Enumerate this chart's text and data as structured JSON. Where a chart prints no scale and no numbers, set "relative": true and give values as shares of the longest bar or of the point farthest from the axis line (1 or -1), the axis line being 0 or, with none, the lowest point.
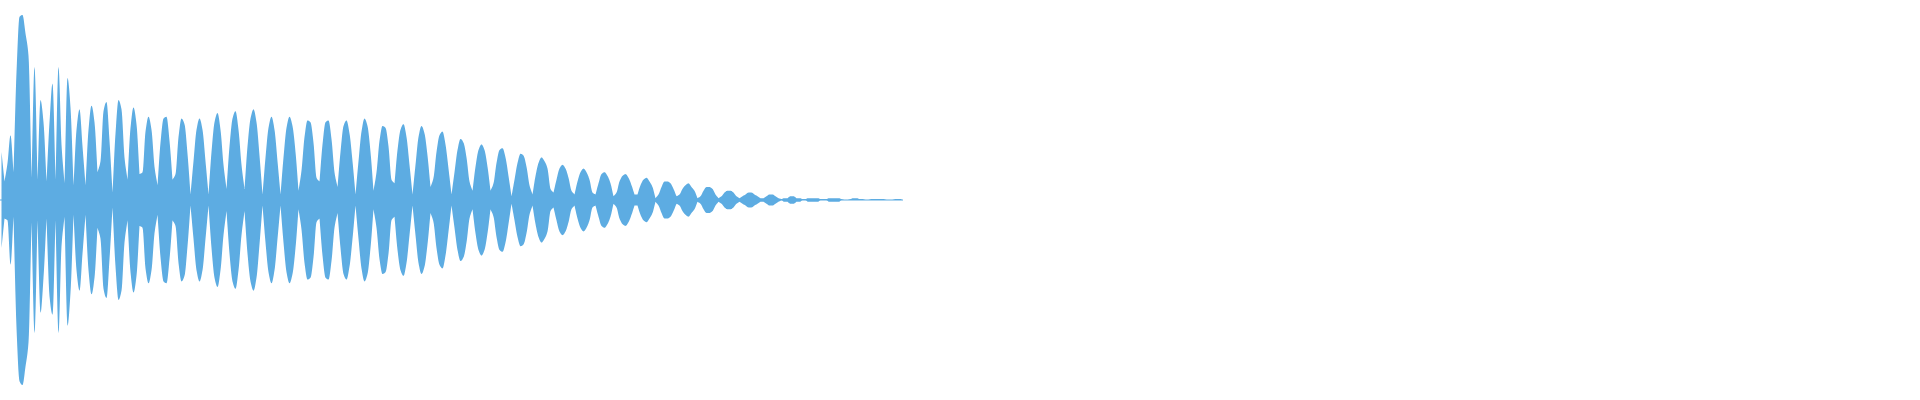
{
  "chart_data": {
    "type": "area",
    "relative": true,
    "categories": [
      null,
      null,
      null,
      null,
      null,
      null,
      null,
      null,
      null,
      null,
      null,
      null,
      null,
      null,
      null,
      null,
      null,
      null,
      null,
      null,
      null,
      null,
      null,
      null,
      null,
      null,
      null,
      null,
      null,
      null,
      null,
      null,
      null,
      null,
      null,
      null,
      null,
      null,
      null,
      null,
      null,
      null,
      null,
      null,
      null,
      null,
      null,
      null,
      null,
      null,
      null,
      null,
      null,
      null,
      null,
      null,
      null,
      null,
      null,
      null,
      null,
      null,
      null,
      null,
      null,
      null,
      null,
      null,
      null,
      null,
      null,
      null,
      null,
      null,
      null,
      null,
      null,
      null,
      null,
      null,
      null,
      null,
      null,
      null,
      null,
      null,
      null,
      null,
      null,
      null,
      null,
      null,
      null,
      null,
      null,
      null,
      null,
      null,
      null,
      null,
      null,
      null,
      null,
      null,
      null,
      null,
      null,
      null,
      null,
      null,
      null,
      null,
      null,
      null,
      null,
      null,
      null,
      null,
      null,
      null,
      null,
      null,
      null,
      null,
      null,
      null,
      null,
      null,
      null,
      null,
      null,
      null,
      null,
      null,
      null,
      null,
      null,
      null,
      null,
      null,
      null,
      null,
      null,
      null,
      null,
      null,
      null,
      null,
      null,
      null,
      null,
      null,
      null,
      null,
      null,
      null,
      null,
      null,
      null,
      null,
      null,
      null,
      null,
      null,
      null,
      null,
      null,
      null,
      null,
      null,
      null,
      null,
      null,
      null,
      null,
      null,
      null,
      null,
      null,
      null,
      null,
      null,
      null,
      null,
      null,
      null,
      null,
      null,
      null,
      null,
      null,
      null,
      null,
      null,
      null,
      null,
      null,
      null,
      null,
      null,
      null,
      null,
      null,
      null,
      null,
      null,
      null,
      null,
      null,
      null,
      null,
      null,
      null,
      null,
      null,
      null,
      null,
      null,
      null,
      null,
      null,
      null,
      null,
      null,
      null,
      null,
      null,
      null,
      null,
      null,
      null,
      null,
      null,
      null,
      null,
      null,
      null,
      null,
      null,
      null,
      null,
      null,
      null,
      null,
      null,
      null,
      null,
      null,
      null,
      null,
      null,
      null,
      null,
      null,
      null,
      null,
      null,
      null,
      null,
      null,
      null,
      null,
      null,
      null,
      null,
      null,
      null,
      null,
      null,
      null,
      null,
      null,
      null,
      null,
      null,
      null,
      null,
      null,
      null,
      null,
      null,
      null,
      null,
      null,
      null,
      null,
      null,
      null,
      null,
      null,
      null,
      null,
      null,
      null,
      null,
      null,
      null,
      null,
      null,
      null,
      null
    ],
    "series": [
      {
        "color": "#5dace2",
        "values": [
          0.26,
          0.1,
          0.2,
          0.35,
          0.15,
          0.69,
          0.99,
          1.0,
          0.9,
          0.78,
          0.12,
          0.72,
          0.11,
          0.54,
          0.42,
          0.1,
          0.42,
          0.63,
          0.11,
          0.72,
          0.3,
          0.09,
          0.66,
          0.5,
          0.08,
          0.38,
          0.49,
          0.29,
          0.08,
          0.38,
          0.51,
          0.42,
          0.15,
          0.21,
          0.48,
          0.53,
          0.32,
          0.04,
          0.36,
          0.54,
          0.49,
          0.23,
          0.11,
          0.39,
          0.5,
          0.41,
          0.14,
          0.15,
          0.37,
          0.45,
          0.38,
          0.18,
          0.08,
          0.31,
          0.44,
          0.45,
          0.32,
          0.11,
          0.14,
          0.34,
          0.44,
          0.41,
          0.25,
          0.03,
          0.21,
          0.38,
          0.44,
          0.38,
          0.21,
          0.03,
          0.26,
          0.42,
          0.47,
          0.38,
          0.19,
          0.06,
          0.29,
          0.44,
          0.48,
          0.38,
          0.19,
          0.06,
          0.29,
          0.44,
          0.49,
          0.42,
          0.24,
          0.03,
          0.23,
          0.39,
          0.45,
          0.38,
          0.21,
          0.03,
          0.23,
          0.39,
          0.45,
          0.4,
          0.26,
          0.05,
          0.16,
          0.34,
          0.43,
          0.42,
          0.31,
          0.12,
          0.1,
          0.3,
          0.42,
          0.43,
          0.33,
          0.15,
          0.07,
          0.26,
          0.4,
          0.43,
          0.36,
          0.21,
          0.03,
          0.21,
          0.37,
          0.44,
          0.4,
          0.26,
          0.05,
          0.15,
          0.32,
          0.4,
          0.39,
          0.29,
          0.11,
          0.09,
          0.27,
          0.38,
          0.41,
          0.34,
          0.19,
          0.03,
          0.19,
          0.34,
          0.4,
          0.36,
          0.24,
          0.07,
          0.12,
          0.26,
          0.35,
          0.37,
          0.3,
          0.17,
          0.03,
          0.15,
          0.27,
          0.33,
          0.31,
          0.23,
          0.1,
          0.05,
          0.18,
          0.27,
          0.3,
          0.27,
          0.18,
          0.05,
          0.09,
          0.2,
          0.27,
          0.28,
          0.23,
          0.13,
          0.02,
          0.11,
          0.2,
          0.25,
          0.24,
          0.18,
          0.08,
          0.03,
          0.13,
          0.2,
          0.23,
          0.21,
          0.17,
          0.06,
          0.04,
          0.11,
          0.17,
          0.19,
          0.17,
          0.12,
          0.05,
          0.03,
          0.1,
          0.15,
          0.17,
          0.15,
          0.11,
          0.04,
          0.03,
          0.09,
          0.14,
          0.15,
          0.13,
          0.09,
          0.02,
          0.04,
          0.1,
          0.13,
          0.14,
          0.12,
          0.08,
          0.03,
          0.03,
          0.08,
          0.11,
          0.12,
          0.1,
          0.07,
          0.01,
          0.03,
          0.07,
          0.1,
          0.1,
          0.09,
          0.06,
          0.02,
          0.03,
          0.06,
          0.08,
          0.09,
          0.07,
          0.05,
          0.01,
          0.02,
          0.05,
          0.07,
          0.07,
          0.06,
          0.03,
          0.01,
          0.02,
          0.04,
          0.05,
          0.05,
          0.04,
          0.02,
          0.01,
          0.02,
          0.03,
          0.04,
          0.04,
          0.03,
          0.02,
          0.01,
          0.01,
          0.02,
          0.03,
          0.03,
          0.02,
          0.01,
          0.005,
          0.01,
          0.01,
          0.02,
          0.02,
          0.01,
          0.01,
          0.005,
          0.005,
          0.01,
          0.01,
          0.01,
          0.01,
          0.005,
          0.005,
          0.005,
          0.01,
          0.01,
          0.01,
          0.01,
          0.005,
          0,
          0,
          0.005,
          0.01,
          0.01,
          0.005,
          0.005,
          0,
          0,
          0.005,
          0.005,
          0.005,
          0.005,
          0.005,
          0,
          0,
          0,
          0.005,
          0.005,
          0.005
        ]
      },
      {
        "color": "#5dace2",
        "values": [
          -0.26,
          -0.1,
          -0.11,
          -0.35,
          -0.09,
          -0.69,
          -0.98,
          -1.0,
          -0.9,
          -0.77,
          -0.12,
          -0.72,
          -0.11,
          -0.61,
          -0.42,
          -0.1,
          -0.52,
          -0.62,
          -0.11,
          -0.72,
          -0.25,
          -0.09,
          -0.68,
          -0.5,
          -0.08,
          -0.38,
          -0.49,
          -0.29,
          -0.08,
          -0.38,
          -0.51,
          -0.42,
          -0.15,
          -0.21,
          -0.48,
          -0.53,
          -0.32,
          -0.04,
          -0.36,
          -0.54,
          -0.49,
          -0.23,
          -0.11,
          -0.39,
          -0.5,
          -0.41,
          -0.14,
          -0.15,
          -0.37,
          -0.45,
          -0.38,
          -0.18,
          -0.08,
          -0.31,
          -0.44,
          -0.45,
          -0.32,
          -0.11,
          -0.14,
          -0.34,
          -0.44,
          -0.41,
          -0.25,
          -0.03,
          -0.21,
          -0.38,
          -0.44,
          -0.38,
          -0.21,
          -0.03,
          -0.26,
          -0.42,
          -0.47,
          -0.38,
          -0.19,
          -0.06,
          -0.29,
          -0.44,
          -0.48,
          -0.38,
          -0.19,
          -0.06,
          -0.29,
          -0.44,
          -0.49,
          -0.42,
          -0.24,
          -0.03,
          -0.23,
          -0.39,
          -0.45,
          -0.38,
          -0.21,
          -0.03,
          -0.23,
          -0.39,
          -0.45,
          -0.4,
          -0.26,
          -0.05,
          -0.16,
          -0.34,
          -0.43,
          -0.42,
          -0.31,
          -0.12,
          -0.1,
          -0.3,
          -0.42,
          -0.43,
          -0.33,
          -0.15,
          -0.07,
          -0.26,
          -0.4,
          -0.43,
          -0.36,
          -0.21,
          -0.03,
          -0.21,
          -0.37,
          -0.44,
          -0.4,
          -0.26,
          -0.05,
          -0.15,
          -0.32,
          -0.4,
          -0.39,
          -0.29,
          -0.11,
          -0.09,
          -0.27,
          -0.38,
          -0.41,
          -0.34,
          -0.19,
          -0.03,
          -0.19,
          -0.34,
          -0.4,
          -0.36,
          -0.24,
          -0.07,
          -0.12,
          -0.26,
          -0.35,
          -0.37,
          -0.3,
          -0.17,
          -0.03,
          -0.15,
          -0.27,
          -0.33,
          -0.31,
          -0.23,
          -0.1,
          -0.05,
          -0.18,
          -0.27,
          -0.3,
          -0.27,
          -0.18,
          -0.05,
          -0.09,
          -0.2,
          -0.27,
          -0.28,
          -0.23,
          -0.13,
          -0.02,
          -0.11,
          -0.2,
          -0.25,
          -0.24,
          -0.18,
          -0.08,
          -0.03,
          -0.13,
          -0.2,
          -0.23,
          -0.21,
          -0.17,
          -0.06,
          -0.04,
          -0.11,
          -0.17,
          -0.19,
          -0.17,
          -0.12,
          -0.05,
          -0.03,
          -0.1,
          -0.15,
          -0.17,
          -0.15,
          -0.11,
          -0.04,
          -0.03,
          -0.09,
          -0.14,
          -0.15,
          -0.13,
          -0.09,
          -0.02,
          -0.04,
          -0.1,
          -0.13,
          -0.14,
          -0.12,
          -0.08,
          -0.03,
          -0.03,
          -0.08,
          -0.11,
          -0.12,
          -0.1,
          -0.07,
          -0.01,
          -0.03,
          -0.07,
          -0.1,
          -0.1,
          -0.09,
          -0.06,
          -0.02,
          -0.03,
          -0.06,
          -0.08,
          -0.09,
          -0.07,
          -0.05,
          -0.01,
          -0.02,
          -0.05,
          -0.07,
          -0.07,
          -0.06,
          -0.03,
          -0.01,
          -0.02,
          -0.04,
          -0.05,
          -0.05,
          -0.04,
          -0.02,
          -0.01,
          -0.02,
          -0.03,
          -0.04,
          -0.04,
          -0.03,
          -0.02,
          -0.01,
          -0.01,
          -0.02,
          -0.03,
          -0.03,
          -0.02,
          -0.01,
          0,
          -0.01,
          -0.01,
          -0.02,
          -0.02,
          -0.01,
          -0.01,
          0,
          0,
          -0.01,
          -0.01,
          -0.01,
          -0.01,
          0,
          0,
          0,
          -0.01,
          -0.01,
          -0.01,
          -0.01,
          0,
          0,
          0,
          0,
          0,
          0,
          0,
          0,
          0,
          0,
          0,
          0,
          0,
          0,
          0,
          0,
          0,
          0,
          0,
          0,
          0
        ]
      }
    ],
    "ref_lines": [
      {
        "axis": "y",
        "value": 0,
        "color": "#5dace2"
      }
    ]
  }
}
